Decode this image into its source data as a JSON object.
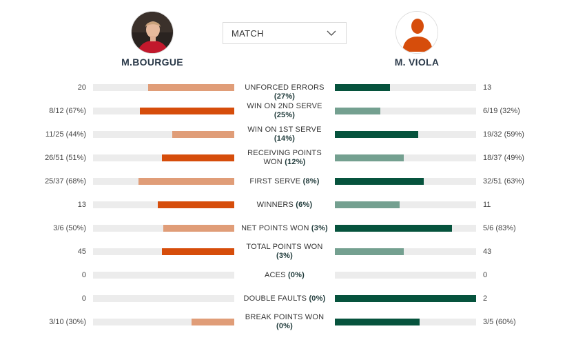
{
  "players": {
    "left": {
      "name": "M.BOURGUE"
    },
    "right": {
      "name": "M. VIOLA"
    }
  },
  "filter": {
    "selected": "MATCH"
  },
  "colors": {
    "left_win": "#d64d0b",
    "left_lose": "#e09d78",
    "right_win": "#06533d",
    "right_lose": "#74a090",
    "track": "#ececec"
  },
  "stats": [
    {
      "label": "UNFORCED ERRORS",
      "diff": "(27%)",
      "left": "20",
      "right": "13",
      "left_pct": 0.61,
      "right_pct": 0.39,
      "leader": "right"
    },
    {
      "label": "WIN ON 2ND SERVE",
      "diff": "(25%)",
      "left": "8/12 (67%)",
      "right": "6/19 (32%)",
      "left_pct": 0.67,
      "right_pct": 0.32,
      "leader": "left"
    },
    {
      "label": "WIN ON 1ST SERVE",
      "diff": "(14%)",
      "left": "11/25 (44%)",
      "right": "19/32 (59%)",
      "left_pct": 0.44,
      "right_pct": 0.59,
      "leader": "right"
    },
    {
      "label": "RECEIVING POINTS WON",
      "diff": "(12%)",
      "left": "26/51 (51%)",
      "right": "18/37 (49%)",
      "left_pct": 0.51,
      "right_pct": 0.49,
      "leader": "left"
    },
    {
      "label": "FIRST SERVE",
      "diff": "(8%)",
      "left": "25/37 (68%)",
      "right": "32/51 (63%)",
      "left_pct": 0.68,
      "right_pct": 0.63,
      "leader": "right"
    },
    {
      "label": "WINNERS",
      "diff": "(6%)",
      "left": "13",
      "right": "11",
      "left_pct": 0.54,
      "right_pct": 0.46,
      "leader": "left"
    },
    {
      "label": "NET POINTS WON",
      "diff": "(3%)",
      "left": "3/6 (50%)",
      "right": "5/6 (83%)",
      "left_pct": 0.5,
      "right_pct": 0.83,
      "leader": "right"
    },
    {
      "label": "TOTAL POINTS WON",
      "diff": "(3%)",
      "left": "45",
      "right": "43",
      "left_pct": 0.51,
      "right_pct": 0.49,
      "leader": "left"
    },
    {
      "label": "ACES",
      "diff": "(0%)",
      "left": "0",
      "right": "0",
      "left_pct": 0,
      "right_pct": 0,
      "leader": "none"
    },
    {
      "label": "DOUBLE FAULTS",
      "diff": "(0%)",
      "left": "0",
      "right": "2",
      "left_pct": 0,
      "right_pct": 1.0,
      "leader": "right"
    },
    {
      "label": "BREAK POINTS WON",
      "diff": "(0%)",
      "left": "3/10 (30%)",
      "right": "3/5 (60%)",
      "left_pct": 0.3,
      "right_pct": 0.6,
      "leader": "right"
    }
  ]
}
